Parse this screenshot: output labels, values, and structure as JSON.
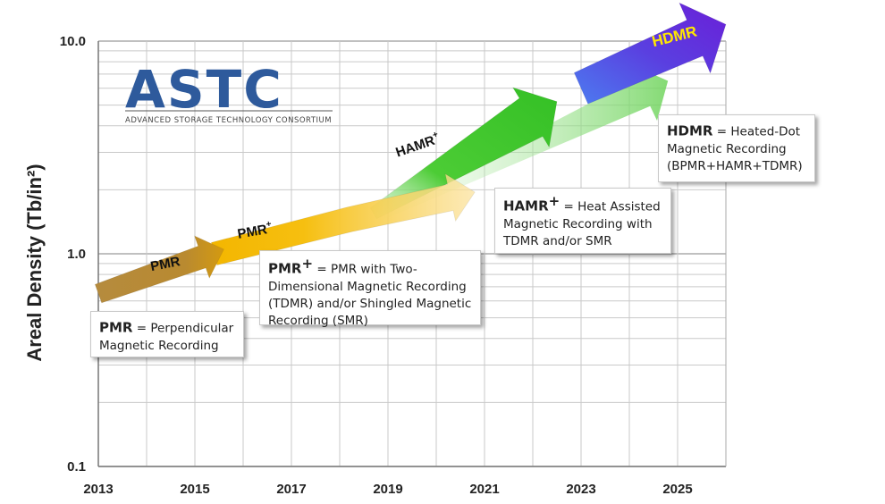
{
  "logo": {
    "name": "ASTC",
    "tagline": "ADVANCED STORAGE TECHNOLOGY CONSORTIUM"
  },
  "chart_data": {
    "type": "line",
    "title": "",
    "xlabel": "",
    "ylabel": "Areal Density (Tb/in²)",
    "yscale": "log",
    "xlim": [
      2013,
      2026
    ],
    "ylim": [
      0.1,
      10.0
    ],
    "x_ticks": [
      "2013",
      "2015",
      "2017",
      "2019",
      "2021",
      "2023",
      "2025"
    ],
    "y_ticks": [
      "0.1",
      "1.0",
      "10.0"
    ],
    "grid": true,
    "series": [
      {
        "name": "PMR",
        "color": "#b58b3e",
        "x": [
          2013,
          2015.6
        ],
        "y": [
          0.65,
          1.05
        ]
      },
      {
        "name": "PMR+",
        "color": "#f0b400",
        "x": [
          2015.4,
          2018.2,
          2020.8
        ],
        "y": [
          1.0,
          1.45,
          1.95
        ]
      },
      {
        "name": "HAMR+",
        "color": "#3ec12a",
        "x": [
          2018.7,
          2022.5,
          2024.8
        ],
        "y": [
          1.55,
          5.2,
          6.5
        ]
      },
      {
        "name": "HDMR",
        "color": "#6a2fd8",
        "x": [
          2023.0,
          2026.0
        ],
        "y": [
          6.0,
          12.0
        ]
      }
    ],
    "annotations": [
      {
        "term": "PMR",
        "sup": "",
        "desc": "= Perpendicular Magnetic Recording"
      },
      {
        "term": "PMR",
        "sup": "+",
        "desc": "= PMR with Two-Dimensional Magnetic Recording (TDMR) and/or Shingled Magnetic Recording (SMR)"
      },
      {
        "term": "HAMR",
        "sup": "+",
        "desc": "= Heat Assisted Magnetic Recording with TDMR and/or SMR"
      },
      {
        "term": "HDMR",
        "sup": "",
        "desc": "= Heated-Dot Magnetic Recording (BPMR+HAMR+TDMR)"
      }
    ]
  }
}
